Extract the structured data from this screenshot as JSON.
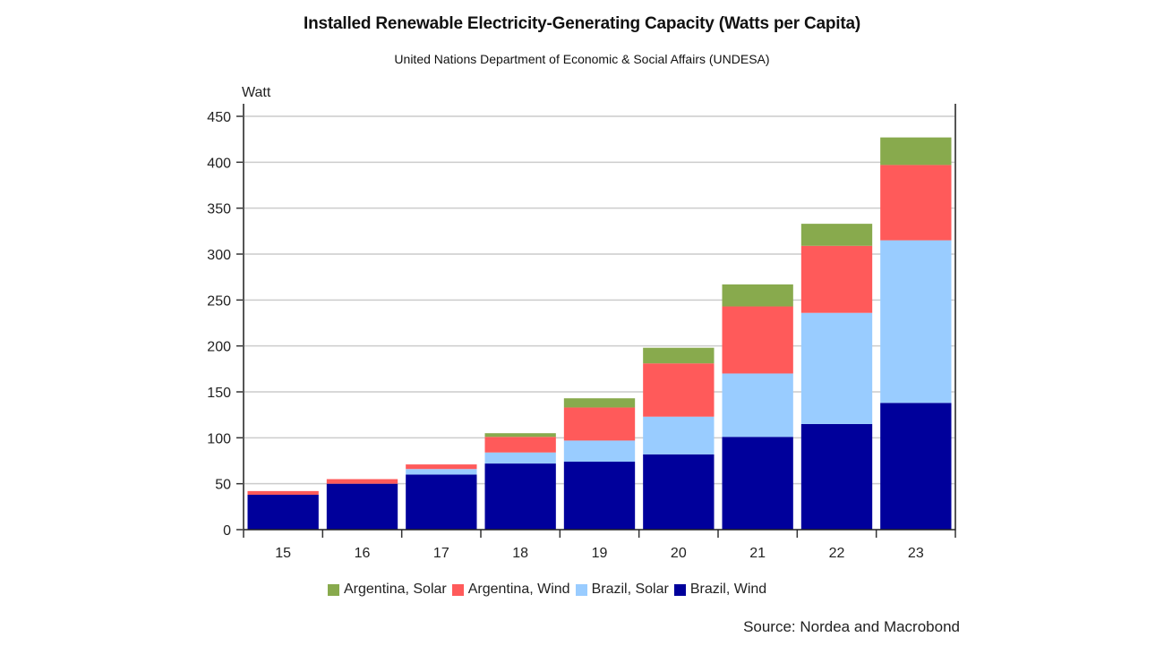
{
  "chart_data": {
    "type": "bar",
    "stacked": true,
    "title": "Installed Renewable Electricity-Generating Capacity (Watts per Capita)",
    "subtitle": "United Nations Department of Economic & Social Affairs (UNDESA)",
    "xlabel": "",
    "ylabel": "Watt",
    "ylim": [
      0,
      450
    ],
    "yticks": [
      0,
      50,
      100,
      150,
      200,
      250,
      300,
      350,
      400,
      450
    ],
    "grid": true,
    "categories": [
      "15",
      "16",
      "17",
      "18",
      "19",
      "20",
      "21",
      "22",
      "23"
    ],
    "series": [
      {
        "name": "Brazil, Wind",
        "color": "#00009b",
        "values": [
          38,
          50,
          60,
          72,
          74,
          82,
          101,
          115,
          138
        ]
      },
      {
        "name": "Brazil, Solar",
        "color": "#99ccff",
        "values": [
          0,
          0,
          6,
          12,
          23,
          41,
          69,
          121,
          177
        ]
      },
      {
        "name": "Argentina, Wind",
        "color": "#ff5a5a",
        "values": [
          4,
          5,
          5,
          17,
          36,
          58,
          73,
          73,
          82
        ]
      },
      {
        "name": "Argentina, Solar",
        "color": "#88aa4d",
        "values": [
          0,
          0,
          0,
          4,
          10,
          17,
          24,
          24,
          30
        ]
      }
    ],
    "legend_order": [
      "Argentina, Solar",
      "Argentina, Wind",
      "Brazil, Solar",
      "Brazil, Wind"
    ],
    "legend_position": "bottom",
    "source": "Source: Nordea and Macrobond"
  }
}
